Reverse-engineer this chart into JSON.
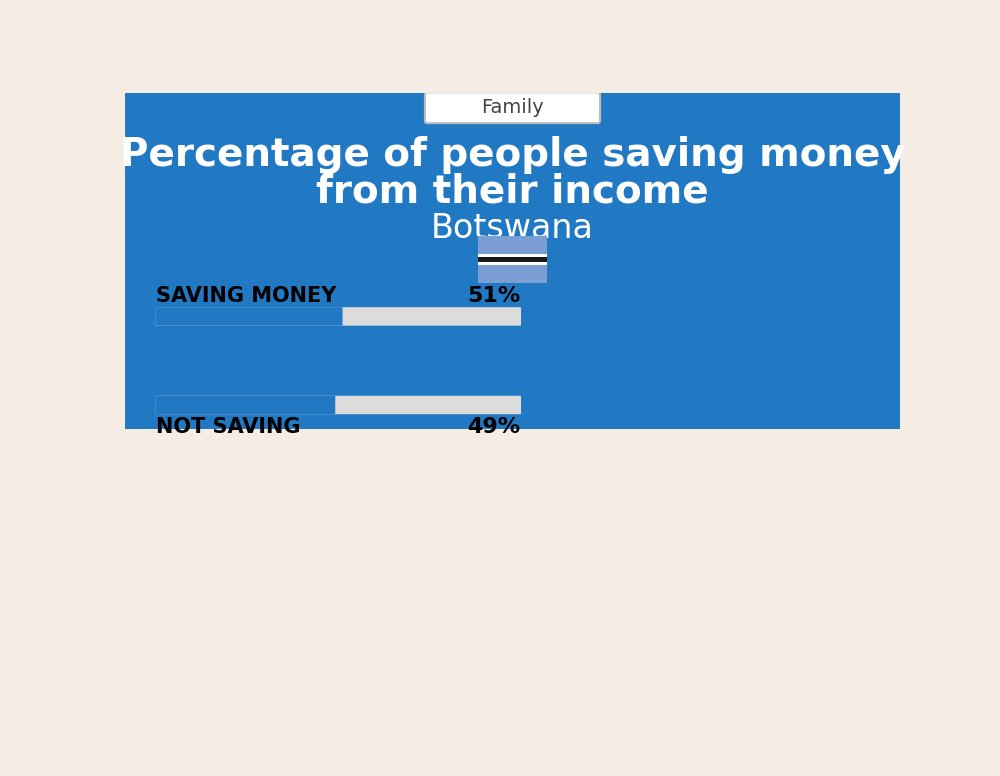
{
  "title_line1": "Percentage of people saving money",
  "title_line2": "from their income",
  "subtitle": "Botswana",
  "category_label": "Family",
  "bg_top_color": "#2279C3",
  "bg_bottom_color": "#F5EDE3",
  "title_color": "#FFFFFF",
  "subtitle_color": "#FFFFFF",
  "bar1_label": "SAVING MONEY",
  "bar1_value": 51,
  "bar1_text": "51%",
  "bar2_label": "NOT SAVING",
  "bar2_value": 49,
  "bar2_text": "49%",
  "bar_filled_color": "#2279C3",
  "bar_empty_color": "#DCDCDC",
  "label_color": "#000000",
  "label_fontsize": 15,
  "percent_fontsize": 16,
  "family_fontsize": 14,
  "title_fontsize": 28,
  "subtitle_fontsize": 24,
  "flag_blue": "#7B9FD4",
  "flag_black": "#1A1A1A",
  "flag_white": "#FFFFFF"
}
